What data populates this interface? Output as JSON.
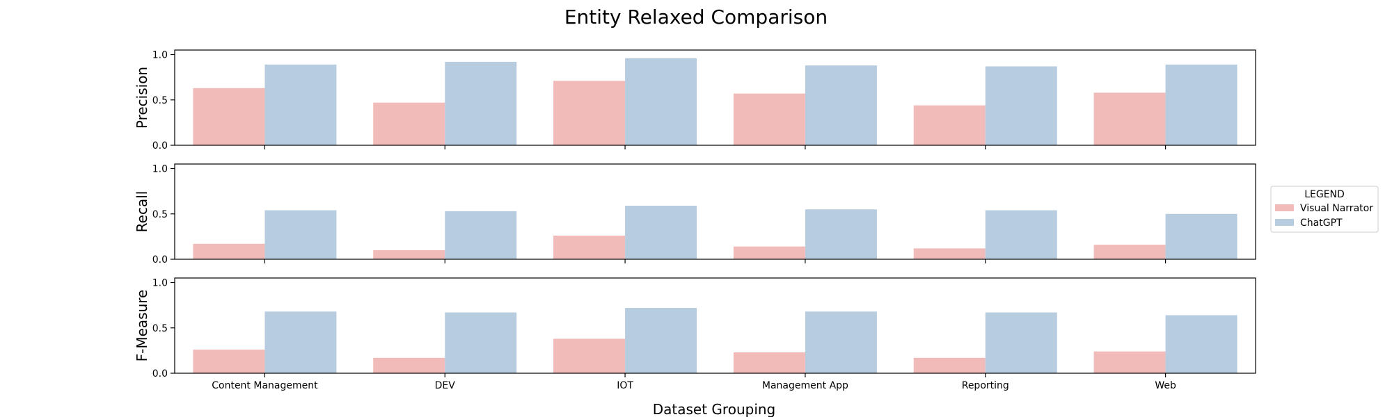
{
  "chart_data": {
    "type": "bar",
    "title": "Entity Relaxed Comparison",
    "xlabel": "Dataset Grouping",
    "categories": [
      "Content Management",
      "DEV",
      "IOT",
      "Management App",
      "Reporting",
      "Web"
    ],
    "ylim": [
      0,
      1.05
    ],
    "yticks": [
      "0.0",
      "0.5",
      "1.0"
    ],
    "legend": {
      "title": "LEGEND",
      "placement": "right-center"
    },
    "series_colors": {
      "Visual Narrator": "#f1bbb9",
      "ChatGPT": "#b8cce0"
    },
    "subplots": [
      {
        "ylabel": "Precision",
        "series": [
          {
            "name": "Visual Narrator",
            "values": [
              0.63,
              0.47,
              0.71,
              0.57,
              0.44,
              0.58
            ]
          },
          {
            "name": "ChatGPT",
            "values": [
              0.89,
              0.92,
              0.96,
              0.88,
              0.87,
              0.89
            ]
          }
        ]
      },
      {
        "ylabel": "Recall",
        "series": [
          {
            "name": "Visual Narrator",
            "values": [
              0.17,
              0.1,
              0.26,
              0.14,
              0.12,
              0.16
            ]
          },
          {
            "name": "ChatGPT",
            "values": [
              0.54,
              0.53,
              0.59,
              0.55,
              0.54,
              0.5
            ]
          }
        ]
      },
      {
        "ylabel": "F-Measure",
        "series": [
          {
            "name": "Visual Narrator",
            "values": [
              0.26,
              0.17,
              0.38,
              0.23,
              0.17,
              0.24
            ]
          },
          {
            "name": "ChatGPT",
            "values": [
              0.68,
              0.67,
              0.72,
              0.68,
              0.67,
              0.64
            ]
          }
        ]
      }
    ]
  }
}
